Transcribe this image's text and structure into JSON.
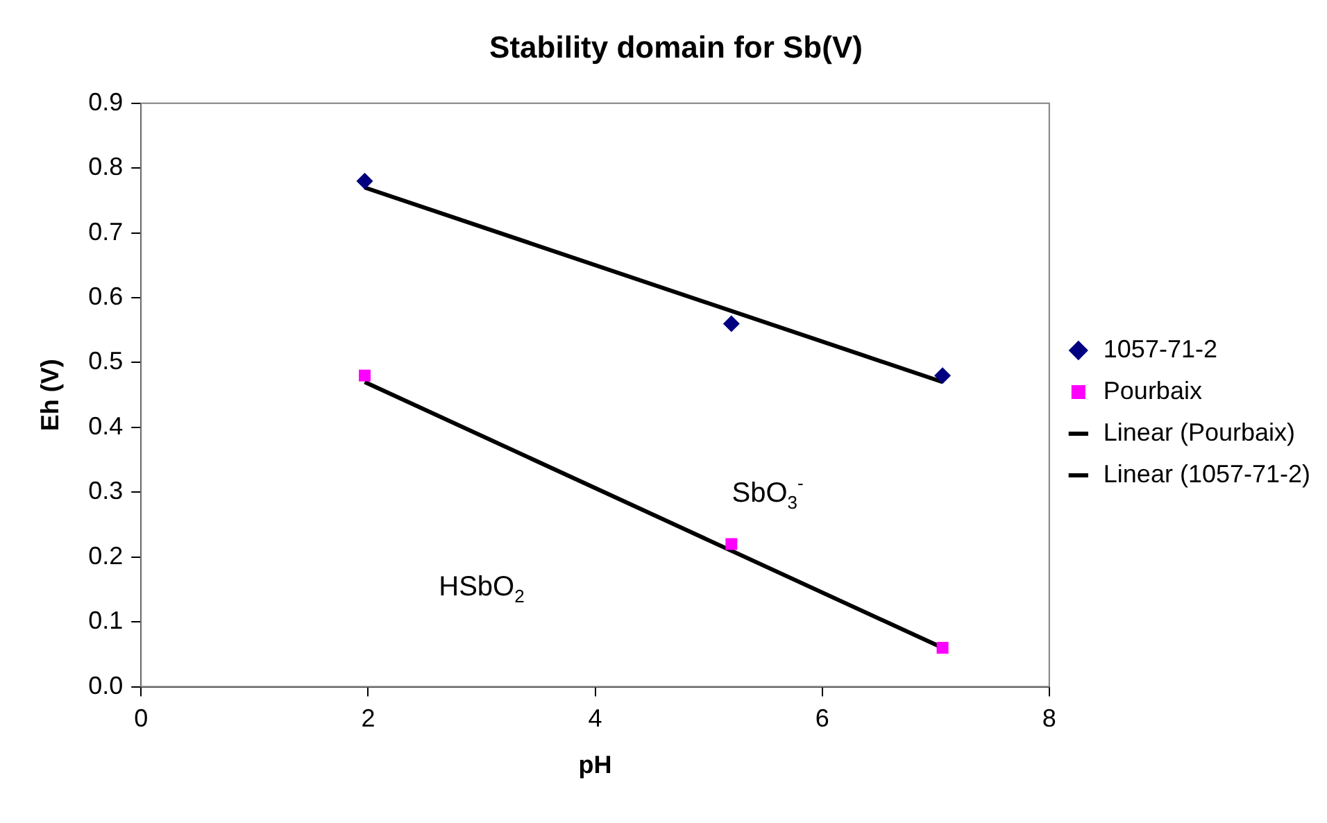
{
  "chart_data": {
    "type": "scatter",
    "title": "Stability domain for Sb(V)",
    "xlabel": "pH",
    "ylabel": "Eh (V)",
    "xlim": [
      0,
      8
    ],
    "xticks": [
      0,
      2,
      4,
      6,
      8
    ],
    "ylim": [
      0,
      0.9
    ],
    "yticks": [
      {
        "value": 0,
        "label": "0.0"
      },
      0.1,
      0.2,
      0.3,
      0.4,
      0.5,
      0.6,
      0.7,
      0.8,
      0.9
    ],
    "series": [
      {
        "name": "1057-71-2",
        "marker": "diamond",
        "color": "#000080",
        "x": [
          1.97,
          5.2,
          7.06
        ],
        "values": [
          0.78,
          0.56,
          0.48
        ]
      },
      {
        "name": "Pourbaix",
        "marker": "square",
        "color": "#ff00ff",
        "x": [
          1.97,
          5.2,
          7.06
        ],
        "values": [
          0.48,
          0.22,
          0.06
        ]
      },
      {
        "name": "Linear (Pourbaix)",
        "type": "line",
        "marker": "none",
        "color": "#000000",
        "x": [
          1.97,
          7.06
        ],
        "values": [
          0.47,
          0.06
        ]
      },
      {
        "name": "Linear (1057-71-2)",
        "type": "line",
        "marker": "none",
        "color": "#000000",
        "x": [
          1.97,
          7.06
        ],
        "values": [
          0.77,
          0.47
        ]
      }
    ],
    "annotations": [
      "SbO$_{3}$$^{-}$",
      "HSbO$_{2}$"
    ],
    "legend": "right",
    "grid": false
  }
}
